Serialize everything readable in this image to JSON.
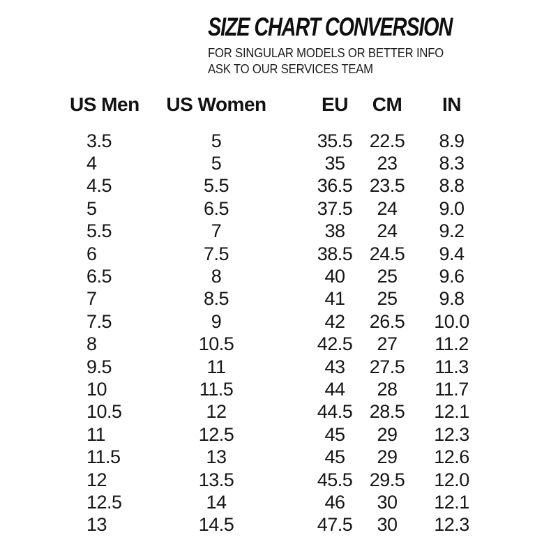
{
  "header": {
    "title": "SIZE CHART CONVERSION",
    "subtitle_lines": [
      "FOR SINGULAR MODELS OR BETTER INFO",
      "ASK TO OUR SERVICES TEAM"
    ]
  },
  "table": {
    "columns": [
      "US Men",
      "US Women",
      "EU",
      "CM",
      "IN"
    ],
    "rows": [
      {
        "us_men": "3.5",
        "us_women": "5",
        "eu": "35.5",
        "cm": "22.5",
        "inch": "8.9"
      },
      {
        "us_men": "4",
        "us_women": "5",
        "eu": "35",
        "cm": "23",
        "inch": "8.3"
      },
      {
        "us_men": "4.5",
        "us_women": "5.5",
        "eu": "36.5",
        "cm": "23.5",
        "inch": "8.8"
      },
      {
        "us_men": "5",
        "us_women": "6.5",
        "eu": "37.5",
        "cm": "24",
        "inch": "9.0"
      },
      {
        "us_men": "5.5",
        "us_women": "7",
        "eu": "38",
        "cm": "24",
        "inch": "9.2"
      },
      {
        "us_men": "6",
        "us_women": "7.5",
        "eu": "38.5",
        "cm": "24.5",
        "inch": "9.4"
      },
      {
        "us_men": "6.5",
        "us_women": "8",
        "eu": "40",
        "cm": "25",
        "inch": "9.6"
      },
      {
        "us_men": "7",
        "us_women": "8.5",
        "eu": "41",
        "cm": "25",
        "inch": "9.8"
      },
      {
        "us_men": "7.5",
        "us_women": "9",
        "eu": "42",
        "cm": "26.5",
        "inch": "10.0"
      },
      {
        "us_men": "8",
        "us_women": "10.5",
        "eu": "42.5",
        "cm": "27",
        "inch": "11.2"
      },
      {
        "us_men": "9.5",
        "us_women": "11",
        "eu": "43",
        "cm": "27.5",
        "inch": "11.3"
      },
      {
        "us_men": "10",
        "us_women": "11.5",
        "eu": "44",
        "cm": "28",
        "inch": "11.7"
      },
      {
        "us_men": "10.5",
        "us_women": "12",
        "eu": "44.5",
        "cm": "28.5",
        "inch": "12.1"
      },
      {
        "us_men": "11",
        "us_women": "12.5",
        "eu": "45",
        "cm": "29",
        "inch": "12.3"
      },
      {
        "us_men": "11.5",
        "us_women": "13",
        "eu": "45",
        "cm": "29",
        "inch": "12.6"
      },
      {
        "us_men": "12",
        "us_women": "13.5",
        "eu": "45.5",
        "cm": "29.5",
        "inch": "12.0"
      },
      {
        "us_men": "12.5",
        "us_women": "14",
        "eu": "46",
        "cm": "30",
        "inch": "12.1"
      },
      {
        "us_men": "13",
        "us_women": "14.5",
        "eu": "47.5",
        "cm": "30",
        "inch": "12.3"
      }
    ]
  },
  "colors": {
    "text": "#161616",
    "background": "#ffffff"
  }
}
